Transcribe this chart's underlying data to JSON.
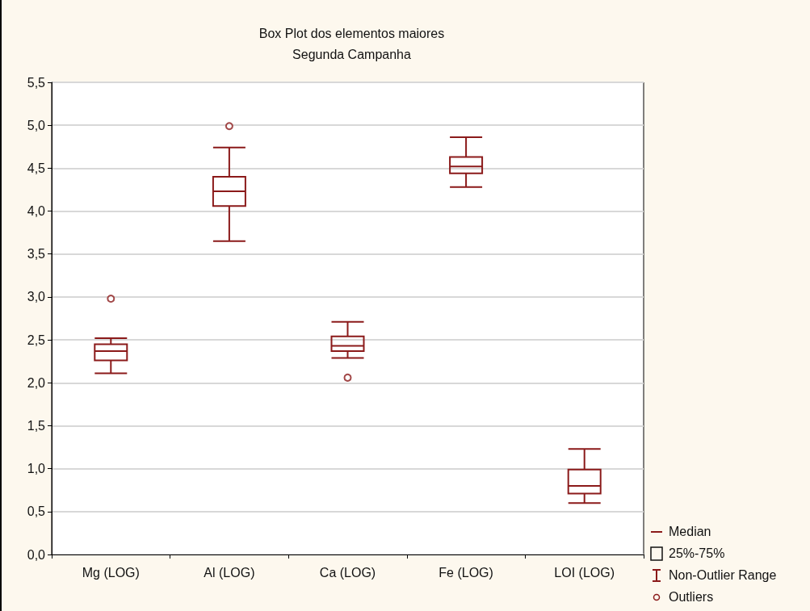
{
  "chart_data": {
    "type": "box",
    "title": "Box Plot dos elementos maiores",
    "subtitle": "Segunda Campanha",
    "categories": [
      "Mg (LOG)",
      "Al (LOG)",
      "Ca (LOG)",
      "Fe (LOG)",
      "LOI (LOG)"
    ],
    "series": [
      {
        "color": "#8b1a1a",
        "boxes": [
          {
            "low": 2.11,
            "q1": 2.26,
            "median": 2.37,
            "q3": 2.45,
            "high": 2.52,
            "outliers": [
              2.98
            ]
          },
          {
            "low": 3.65,
            "q1": 4.06,
            "median": 4.23,
            "q3": 4.4,
            "high": 4.74,
            "outliers": [
              4.99
            ]
          },
          {
            "low": 2.29,
            "q1": 2.37,
            "median": 2.43,
            "q3": 2.54,
            "high": 2.71,
            "outliers": [
              2.06
            ]
          },
          {
            "low": 4.28,
            "q1": 4.44,
            "median": 4.52,
            "q3": 4.63,
            "high": 4.86
          },
          {
            "low": 0.6,
            "q1": 0.71,
            "median": 0.8,
            "q3": 0.99,
            "high": 1.23
          }
        ]
      }
    ],
    "ylim": [
      0,
      5.5
    ],
    "yticks": [
      {
        "value": 0,
        "label": "0,0"
      },
      {
        "value": 0.5,
        "label": "0,5"
      },
      {
        "value": 1,
        "label": "1,0"
      },
      {
        "value": 1.5,
        "label": "1,5"
      },
      {
        "value": 2,
        "label": "2,0"
      },
      {
        "value": 2.5,
        "label": "2,5"
      },
      {
        "value": 3,
        "label": "3,0"
      },
      {
        "value": 3.5,
        "label": "3,5"
      },
      {
        "value": 4,
        "label": "4,0"
      },
      {
        "value": 4.5,
        "label": "4,5"
      },
      {
        "value": 5,
        "label": "5,0"
      },
      {
        "value": 5.5,
        "label": "5,5"
      }
    ],
    "grid": "y",
    "annotations": [
      "Median",
      "25%-75%",
      "Non-Outlier Range",
      "Outliers"
    ]
  }
}
